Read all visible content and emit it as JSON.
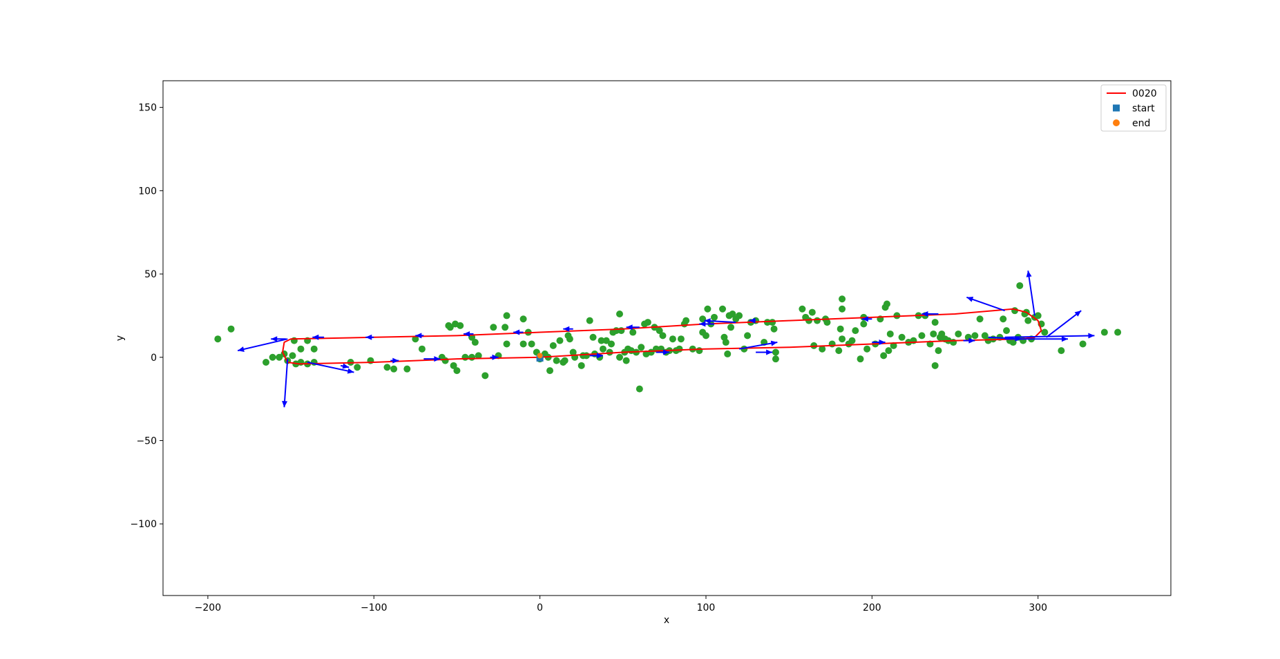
{
  "chart_data": {
    "type": "scatter",
    "title": "",
    "xlabel": "x",
    "ylabel": "y",
    "xlim": [
      -227,
      380
    ],
    "ylim": [
      -143,
      166
    ],
    "xticks": [
      -200,
      -100,
      0,
      100,
      200,
      300
    ],
    "yticks": [
      -100,
      -50,
      0,
      50,
      100,
      150
    ],
    "xtick_labels": [
      "−200",
      "−100",
      "0",
      "100",
      "200",
      "300"
    ],
    "ytick_labels": [
      "−100",
      "−50",
      "0",
      "50",
      "100",
      "150"
    ],
    "grid": false,
    "legend": {
      "placement": "top-right",
      "entries": [
        {
          "label": "0020",
          "marker": "line",
          "color": "#ff0000"
        },
        {
          "label": "start",
          "marker": "square",
          "color": "#1f77b4"
        },
        {
          "label": "end",
          "marker": "circle",
          "color": "#ff7f0e"
        }
      ]
    },
    "series": [
      {
        "name": "0020",
        "kind": "line",
        "color": "#ff0000",
        "points": [
          [
            0,
            0
          ],
          [
            50,
            3
          ],
          [
            100,
            5
          ],
          [
            150,
            6
          ],
          [
            200,
            8
          ],
          [
            250,
            10
          ],
          [
            290,
            11
          ],
          [
            298,
            12
          ],
          [
            302,
            16
          ],
          [
            300,
            22
          ],
          [
            293,
            27
          ],
          [
            285,
            29
          ],
          [
            250,
            26
          ],
          [
            200,
            24
          ],
          [
            150,
            22
          ],
          [
            100,
            20
          ],
          [
            50,
            17
          ],
          [
            0,
            15
          ],
          [
            -50,
            13
          ],
          [
            -100,
            12
          ],
          [
            -150,
            11
          ],
          [
            -154,
            9
          ],
          [
            -155,
            3
          ],
          [
            -152,
            -3
          ],
          [
            -145,
            -4
          ],
          [
            -100,
            -3
          ],
          [
            -50,
            -1
          ],
          [
            0,
            0
          ]
        ]
      },
      {
        "name": "start",
        "kind": "scatter",
        "marker": "square",
        "color": "#1f77b4",
        "points": [
          [
            0,
            -0.5
          ]
        ]
      },
      {
        "name": "end",
        "kind": "scatter",
        "marker": "circle",
        "color": "#ff7f0e",
        "points": [
          [
            0,
            1
          ]
        ]
      },
      {
        "name": "",
        "kind": "scatter",
        "marker": "circle",
        "color": "#2ca02c",
        "points": [
          [
            -194,
            11
          ],
          [
            -186,
            17
          ],
          [
            -165,
            -3
          ],
          [
            -161,
            0
          ],
          [
            -157,
            0
          ],
          [
            -154,
            2
          ],
          [
            -152,
            -2
          ],
          [
            -149,
            1
          ],
          [
            -147,
            -4
          ],
          [
            -144,
            -3
          ],
          [
            -140,
            -4
          ],
          [
            -136,
            -3
          ],
          [
            -148,
            10
          ],
          [
            -144,
            5
          ],
          [
            -140,
            10
          ],
          [
            -136,
            5
          ],
          [
            -114,
            -3
          ],
          [
            -110,
            -6
          ],
          [
            -102,
            -2
          ],
          [
            -92,
            -6
          ],
          [
            -88,
            -7
          ],
          [
            -80,
            -7
          ],
          [
            -75,
            11
          ],
          [
            -71,
            5
          ],
          [
            -59,
            0
          ],
          [
            -57,
            -2
          ],
          [
            -55,
            19
          ],
          [
            -54,
            18
          ],
          [
            -52,
            -5
          ],
          [
            -51,
            20
          ],
          [
            -50,
            -8
          ],
          [
            -48,
            19
          ],
          [
            -45,
            0
          ],
          [
            -41,
            0
          ],
          [
            -41,
            12
          ],
          [
            -39,
            9
          ],
          [
            -37,
            1
          ],
          [
            -33,
            -11
          ],
          [
            -28,
            18
          ],
          [
            -25,
            1
          ],
          [
            -21,
            18
          ],
          [
            -20,
            25
          ],
          [
            -20,
            8
          ],
          [
            -10,
            23
          ],
          [
            -10,
            8
          ],
          [
            -7,
            15
          ],
          [
            -5,
            8
          ],
          [
            -2,
            3
          ],
          [
            0,
            -1
          ],
          [
            3,
            2
          ],
          [
            5,
            0
          ],
          [
            6,
            -8
          ],
          [
            8,
            7
          ],
          [
            10,
            -2
          ],
          [
            12,
            10
          ],
          [
            14,
            -3
          ],
          [
            15,
            -2
          ],
          [
            17,
            13
          ],
          [
            18,
            11
          ],
          [
            20,
            3
          ],
          [
            21,
            0
          ],
          [
            25,
            -5
          ],
          [
            26,
            1
          ],
          [
            28,
            1
          ],
          [
            30,
            22
          ],
          [
            32,
            12
          ],
          [
            33,
            2
          ],
          [
            36,
            0
          ],
          [
            37,
            10
          ],
          [
            38,
            5
          ],
          [
            40,
            10
          ],
          [
            42,
            3
          ],
          [
            43,
            8
          ],
          [
            44,
            15
          ],
          [
            46,
            16
          ],
          [
            48,
            0
          ],
          [
            48,
            26
          ],
          [
            49,
            16
          ],
          [
            51,
            3
          ],
          [
            52,
            -2
          ],
          [
            53,
            5
          ],
          [
            55,
            4
          ],
          [
            56,
            15
          ],
          [
            58,
            3
          ],
          [
            60,
            -19
          ],
          [
            61,
            6
          ],
          [
            63,
            20
          ],
          [
            64,
            2
          ],
          [
            65,
            21
          ],
          [
            67,
            3
          ],
          [
            69,
            18
          ],
          [
            70,
            5
          ],
          [
            72,
            16
          ],
          [
            73,
            5
          ],
          [
            74,
            13
          ],
          [
            76,
            3
          ],
          [
            78,
            4
          ],
          [
            80,
            11
          ],
          [
            82,
            4
          ],
          [
            84,
            5
          ],
          [
            85,
            11
          ],
          [
            87,
            20
          ],
          [
            88,
            22
          ],
          [
            92,
            5
          ],
          [
            96,
            4
          ],
          [
            98,
            23
          ],
          [
            98,
            15
          ],
          [
            100,
            13
          ],
          [
            101,
            29
          ],
          [
            103,
            20
          ],
          [
            105,
            24
          ],
          [
            110,
            29
          ],
          [
            111,
            12
          ],
          [
            112,
            9
          ],
          [
            113,
            2
          ],
          [
            114,
            25
          ],
          [
            115,
            18
          ],
          [
            116,
            26
          ],
          [
            118,
            23
          ],
          [
            120,
            25
          ],
          [
            123,
            5
          ],
          [
            125,
            13
          ],
          [
            127,
            21
          ],
          [
            130,
            22
          ],
          [
            135,
            9
          ],
          [
            137,
            21
          ],
          [
            140,
            21
          ],
          [
            141,
            17
          ],
          [
            142,
            3
          ],
          [
            142,
            -1
          ],
          [
            158,
            29
          ],
          [
            160,
            24
          ],
          [
            162,
            22
          ],
          [
            164,
            27
          ],
          [
            165,
            7
          ],
          [
            167,
            22
          ],
          [
            170,
            5
          ],
          [
            172,
            23
          ],
          [
            173,
            21
          ],
          [
            176,
            8
          ],
          [
            180,
            4
          ],
          [
            181,
            17
          ],
          [
            182,
            11
          ],
          [
            182,
            35
          ],
          [
            182,
            29
          ],
          [
            186,
            8
          ],
          [
            188,
            10
          ],
          [
            190,
            16
          ],
          [
            193,
            -1
          ],
          [
            195,
            20
          ],
          [
            195,
            24
          ],
          [
            197,
            5
          ],
          [
            202,
            8
          ],
          [
            205,
            23
          ],
          [
            207,
            1
          ],
          [
            208,
            30
          ],
          [
            209,
            32
          ],
          [
            210,
            4
          ],
          [
            211,
            14
          ],
          [
            213,
            7
          ],
          [
            215,
            25
          ],
          [
            218,
            12
          ],
          [
            222,
            9
          ],
          [
            225,
            10
          ],
          [
            228,
            25
          ],
          [
            230,
            13
          ],
          [
            232,
            25
          ],
          [
            235,
            8
          ],
          [
            237,
            14
          ],
          [
            238,
            21
          ],
          [
            238,
            -5
          ],
          [
            240,
            4
          ],
          [
            241,
            12
          ],
          [
            242,
            14
          ],
          [
            244,
            11
          ],
          [
            246,
            10
          ],
          [
            249,
            9
          ],
          [
            252,
            14
          ],
          [
            258,
            12
          ],
          [
            262,
            13
          ],
          [
            265,
            23
          ],
          [
            268,
            13
          ],
          [
            270,
            10
          ],
          [
            273,
            11
          ],
          [
            277,
            12
          ],
          [
            279,
            23
          ],
          [
            281,
            16
          ],
          [
            283,
            10
          ],
          [
            285,
            9
          ],
          [
            286,
            28
          ],
          [
            288,
            12
          ],
          [
            289,
            43
          ],
          [
            291,
            10
          ],
          [
            292,
            26
          ],
          [
            293,
            27
          ],
          [
            294,
            22
          ],
          [
            296,
            11
          ],
          [
            298,
            24
          ],
          [
            300,
            25
          ],
          [
            302,
            20
          ],
          [
            304,
            15
          ],
          [
            314,
            4
          ],
          [
            327,
            8
          ],
          [
            340,
            15
          ],
          [
            348,
            15
          ]
        ]
      },
      {
        "name": "",
        "kind": "arrows",
        "color": "#0000ff",
        "segments": [
          [
            -152,
            -1,
            -154,
            -30
          ],
          [
            -152,
            11,
            -182,
            4
          ],
          [
            -153,
            11,
            -162,
            11
          ],
          [
            -140,
            -3,
            -112,
            -9
          ],
          [
            -130,
            12,
            -137,
            12
          ],
          [
            -100,
            12,
            -105,
            12
          ],
          [
            -90,
            -2,
            -85,
            -2
          ],
          [
            -70,
            13,
            -75,
            13
          ],
          [
            -70,
            -1,
            -60,
            -1
          ],
          [
            -40,
            14,
            -46,
            14
          ],
          [
            -30,
            0,
            -25,
            0
          ],
          [
            -10,
            15,
            -16,
            15
          ],
          [
            20,
            17,
            14,
            17
          ],
          [
            30,
            1,
            38,
            1
          ],
          [
            60,
            18,
            52,
            18
          ],
          [
            70,
            3,
            78,
            3
          ],
          [
            105,
            20,
            96,
            20
          ],
          [
            118,
            21,
            99,
            22
          ],
          [
            120,
            5,
            143,
            9
          ],
          [
            130,
            22,
            126,
            22
          ],
          [
            130,
            3,
            140,
            3
          ],
          [
            200,
            23,
            194,
            23
          ],
          [
            200,
            9,
            208,
            9
          ],
          [
            240,
            26,
            230,
            26
          ],
          [
            255,
            10,
            262,
            10
          ],
          [
            280,
            28,
            257,
            36
          ],
          [
            298,
            25,
            294,
            52
          ],
          [
            305,
            12,
            326,
            28
          ],
          [
            280,
            11,
            318,
            11
          ],
          [
            280,
            12,
            334,
            13
          ],
          [
            270,
            12,
            290,
            11
          ],
          [
            -120,
            -5,
            -115,
            -6
          ]
        ]
      }
    ]
  }
}
